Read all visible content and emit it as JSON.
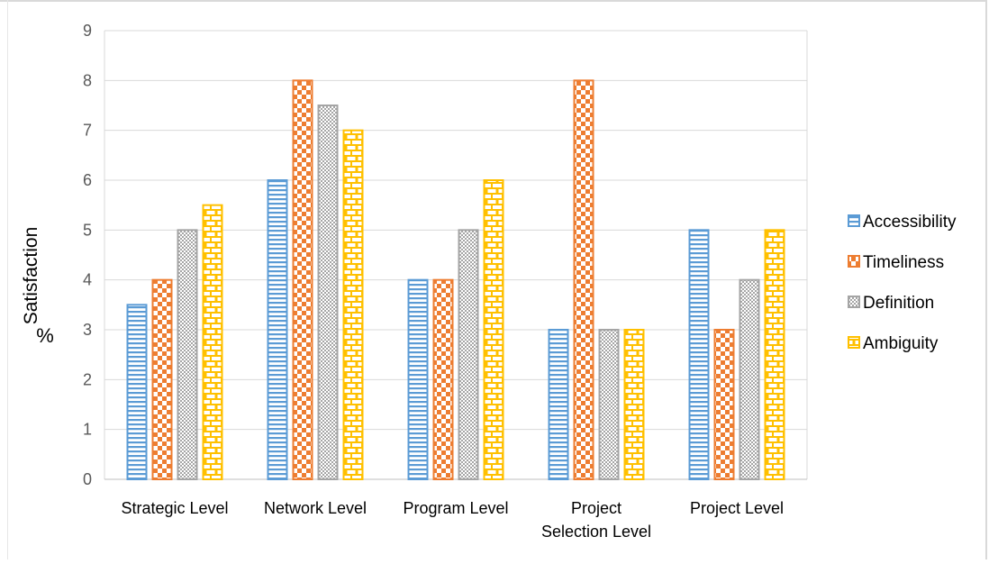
{
  "chart_data": {
    "type": "bar",
    "categories": [
      "Strategic Level",
      "Network Level",
      "Program Level",
      "Project Selection Level",
      "Project Level"
    ],
    "category_lines": [
      [
        "Strategic Level"
      ],
      [
        "Network Level"
      ],
      [
        "Program Level"
      ],
      [
        "Project",
        "Selection Level"
      ],
      [
        "Project Level"
      ]
    ],
    "series": [
      {
        "name": "Accessibility",
        "values": [
          3.5,
          6,
          4,
          3,
          5
        ],
        "color": "#5b9bd5",
        "pattern": "horizontal-stripes"
      },
      {
        "name": "Timeliness",
        "values": [
          4,
          8,
          4,
          8,
          3
        ],
        "color": "#ed7d31",
        "pattern": "checkerboard"
      },
      {
        "name": "Definition",
        "values": [
          5,
          7.5,
          5,
          3,
          4
        ],
        "color": "#a5a5a5",
        "pattern": "small-checker"
      },
      {
        "name": "Ambiguity",
        "values": [
          5.5,
          7,
          6,
          3,
          5
        ],
        "color": "#ffc000",
        "pattern": "brick"
      }
    ],
    "y_ticks": [
      "0",
      "1",
      "2",
      "3",
      "4",
      "5",
      "6",
      "7",
      "8",
      "9"
    ],
    "ylabel": "Satisfaction",
    "ylabel_unit": "%",
    "ylim": [
      0,
      9
    ],
    "grid": true,
    "legend_position": "right"
  }
}
